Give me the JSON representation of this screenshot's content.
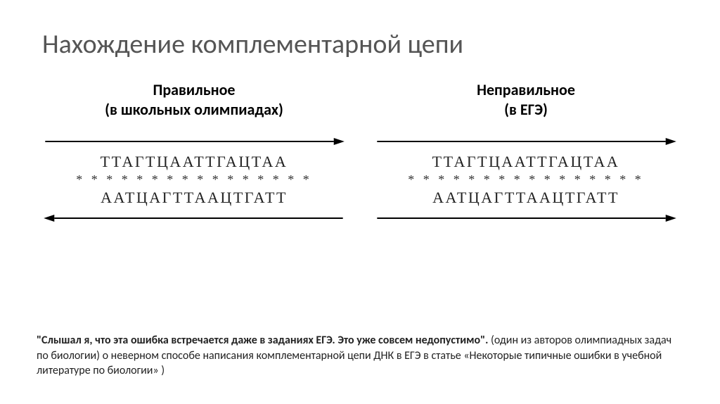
{
  "title": "Нахождение комплементарной цепи",
  "colors": {
    "background": "#ffffff",
    "title": "#555555",
    "text": "#000000",
    "seq": "#222222",
    "stars": "#333333",
    "arrow": "#000000"
  },
  "left": {
    "label_line1": "Правильное",
    "label_line2": "(в школьных олимпиадах)",
    "top_arrow_dir": "right",
    "seq_top": "ТТАГТЦААТТГАЦТАА",
    "stars": "* * * * * * * * * * * * * * * *",
    "seq_bot": "ААТЦАГТТААЦТГАТТ",
    "bot_arrow_dir": "left"
  },
  "right": {
    "label_line1": "Неправильное",
    "label_line2": "(в ЕГЭ)",
    "top_arrow_dir": "right",
    "seq_top": "ТТАГТЦААТТГАЦТАА",
    "stars": "* * * * * * * * * * * * * * * *",
    "seq_bot": "ААТЦАГТТААЦТГАТТ",
    "bot_arrow_dir": "right"
  },
  "footer": {
    "quote": "\"Слышал я, что эта ошибка встречается даже в заданиях ЕГЭ. Это уже совсем недопустимо\".",
    "rest": " (один  из авторов олимпиадных задач по биологии) о неверном способе написания комплементарной цепи ДНК в ЕГЭ в статье «Некоторые типичные ошибки в учебной литературе по биологии» )"
  },
  "font_sizes": {
    "title": 38,
    "col_label": 22,
    "seq": 22,
    "stars": 18,
    "footer": 16
  },
  "arrow_style": {
    "stroke": "#000000",
    "stroke_width": 2,
    "head_length": 14,
    "head_width": 10
  }
}
